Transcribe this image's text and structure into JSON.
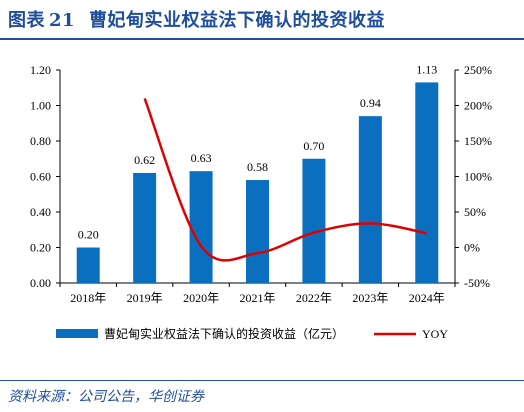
{
  "figure": {
    "label": "图表",
    "number": "21",
    "title": "曹妃甸实业权益法下确认的投资收益"
  },
  "source": "资料来源：公司公告，华创证券",
  "colors": {
    "bar": "#0b6fbf",
    "line": "#e00000",
    "title": "#1f4e9b",
    "axis": "#000000"
  },
  "chart_data": {
    "type": "bar",
    "categories": [
      "2018年",
      "2019年",
      "2020年",
      "2021年",
      "2022年",
      "2023年",
      "2024年"
    ],
    "series": [
      {
        "name": "曹妃甸实业权益法下确认的投资收益（亿元）",
        "type": "bar",
        "axis": "left",
        "values": [
          0.2,
          0.62,
          0.63,
          0.58,
          0.7,
          0.94,
          1.13
        ],
        "labels": [
          "0.20",
          "0.62",
          "0.63",
          "0.58",
          "0.70",
          "0.94",
          "1.13"
        ]
      },
      {
        "name": "YOY",
        "type": "line",
        "axis": "right",
        "smooth": true,
        "values": [
          null,
          2.1,
          0.02,
          -0.08,
          0.21,
          0.34,
          0.2
        ]
      }
    ],
    "y_left": {
      "ylim": [
        0,
        1.2
      ],
      "ticks": [
        0,
        0.2,
        0.4,
        0.6,
        0.8,
        1.0,
        1.2
      ],
      "tick_labels": [
        "0.00",
        "0.20",
        "0.40",
        "0.60",
        "0.80",
        "1.00",
        "1.20"
      ]
    },
    "y_right": {
      "ylim": [
        -0.5,
        2.5
      ],
      "ticks": [
        -0.5,
        0,
        0.5,
        1.0,
        1.5,
        2.0,
        2.5
      ],
      "tick_labels": [
        "-50%",
        "0%",
        "50%",
        "100%",
        "150%",
        "200%",
        "250%"
      ]
    },
    "grid": false,
    "legend_position": "bottom"
  }
}
